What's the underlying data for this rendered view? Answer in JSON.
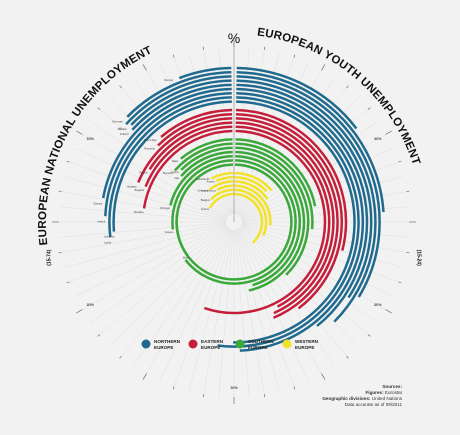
{
  "chart_data": {
    "type": "radial-bar",
    "left_title": "EUROPEAN NATIONAL UNEMPLOYMENT",
    "left_subtitle": "(15-74)",
    "right_title": "EUROPEAN YOUTH UNEMPLOYMENT",
    "right_subtitle": "(15-24)",
    "center_symbol": "%",
    "scale_ticks": [
      "10%",
      "20%",
      "30%",
      "40%",
      "50%"
    ],
    "scale_max": 60,
    "groups": [
      {
        "name": "NORTHERN EUROPE",
        "color": "#1f6a8e",
        "countries": [
          {
            "name": "Norway",
            "national": 3.3,
            "youth": 8.6
          },
          {
            "name": "Denmark",
            "national": 7.4,
            "youth": 14.2
          },
          {
            "name": "UK",
            "national": 7.8,
            "youth": 20.0
          },
          {
            "name": "Sweden",
            "national": 7.6,
            "youth": 22.3
          },
          {
            "name": "Finland",
            "national": 7.8,
            "youth": 20.4
          },
          {
            "name": "Estonia",
            "national": 13.1,
            "youth": 23.4
          },
          {
            "name": "Ireland",
            "national": 14.4,
            "youth": 29.4
          },
          {
            "name": "Latvia",
            "national": 16.0,
            "youth": 31.1
          },
          {
            "name": "Lithuania",
            "national": 15.6,
            "youth": 29.9
          }
        ]
      },
      {
        "name": "EASTERN EUROPE",
        "color": "#c41e3a",
        "countries": [
          {
            "name": "Czech Rep.",
            "national": 6.6,
            "youth": 17.3
          },
          {
            "name": "Romania",
            "national": 7.3,
            "youth": 23.7
          },
          {
            "name": "Hungary",
            "national": 11.1,
            "youth": 26.1
          },
          {
            "name": "Poland",
            "national": 9.5,
            "youth": 25.9
          },
          {
            "name": "Bulgaria",
            "national": 11.2,
            "youth": 25.3
          },
          {
            "name": "Slovakia",
            "national": 13.4,
            "youth": 33.0
          }
        ]
      },
      {
        "name": "SOUTHERN EUROPE",
        "color": "#3aa83a",
        "countries": [
          {
            "name": "Malta",
            "national": 6.5,
            "youth": 13.0
          },
          {
            "name": "Slovenia",
            "national": 8.0,
            "youth": 15.7
          },
          {
            "name": "Cyprus",
            "national": 7.4,
            "youth": 22.4
          },
          {
            "name": "Italy",
            "national": 8.0,
            "youth": 27.8
          },
          {
            "name": "Portugal",
            "national": 12.4,
            "youth": 27.1
          },
          {
            "name": "Greece",
            "national": 16.0,
            "youth": 38.5
          },
          {
            "name": "Spain",
            "national": 20.9,
            "youth": 46.2
          }
        ]
      },
      {
        "name": "WESTERN EUROPE",
        "color": "#f2e22a",
        "countries": [
          {
            "name": "Netherlands",
            "national": 4.4,
            "youth": 8.2
          },
          {
            "name": "Austria",
            "national": 3.7,
            "youth": 7.6
          },
          {
            "name": "Germany",
            "national": 6.0,
            "youth": 9.1
          },
          {
            "name": "Luxembourg",
            "national": 4.5,
            "youth": 15.7
          },
          {
            "name": "Belgium",
            "national": 7.4,
            "youth": 19.0
          },
          {
            "name": "France",
            "national": 9.9,
            "youth": 22.8
          }
        ]
      }
    ],
    "legend_labels": [
      [
        "NORTHERN",
        "EUROPE"
      ],
      [
        "EASTERN",
        "EUROPE"
      ],
      [
        "SOUTHERN",
        "EUROPE"
      ],
      [
        "WESTERN",
        "EUROPE"
      ]
    ]
  },
  "sources": {
    "heading": "Sources:",
    "figures_label": "Figures:",
    "figures_value": "Eurostat",
    "divisions_label": "Geographic divisions:",
    "divisions_value": "United Nations",
    "accuracy": "Data accurate as of 09/2011"
  }
}
